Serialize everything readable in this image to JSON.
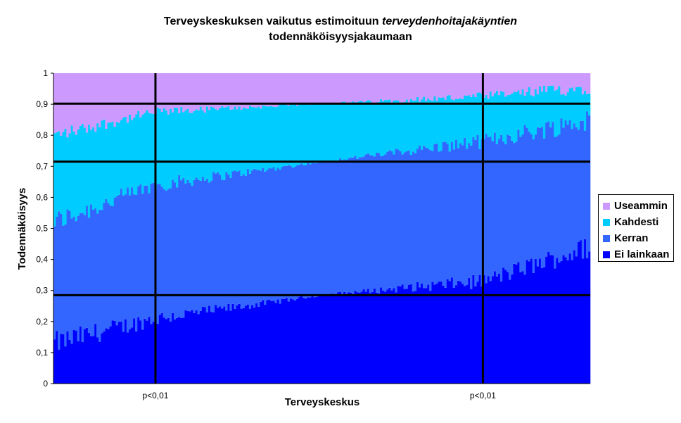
{
  "title": {
    "before": "Terveyskeskuksen vaikutus estimoituun ",
    "italic": "terveydenhoitajakäyntien",
    "line2": "todennäköisyysjakaumaan"
  },
  "chart_data": {
    "type": "bar",
    "stacked": true,
    "xlabel": "Terveyskeskus",
    "ylabel": "Todennäköisyys",
    "ylim": [
      0,
      1
    ],
    "y_ticks": [
      "0",
      "0,1",
      "0,2",
      "0,3",
      "0,4",
      "0,5",
      "0,6",
      "0,7",
      "0,8",
      "0,9",
      "1"
    ],
    "x_annotations": [
      {
        "label": "p<0,01",
        "position": 0.19
      },
      {
        "label": "p<0,01",
        "position": 0.8
      }
    ],
    "reference_lines": [
      0.285,
      0.715,
      0.902
    ],
    "n_centres": 250,
    "series": [
      {
        "name": "Ei lainkaan",
        "color": "#0000FF",
        "boundary_profile": [
          [
            0,
            0.13
          ],
          [
            0.19,
            0.21
          ],
          [
            0.5,
            0.285
          ],
          [
            0.8,
            0.33
          ],
          [
            1,
            0.44
          ]
        ]
      },
      {
        "name": "Kerran",
        "color": "#3366FF",
        "boundary_profile": [
          [
            0,
            0.52
          ],
          [
            0.19,
            0.64
          ],
          [
            0.5,
            0.715
          ],
          [
            0.8,
            0.78
          ],
          [
            1,
            0.85
          ]
        ]
      },
      {
        "name": "Kahdesti",
        "color": "#00CCFF",
        "boundary_profile": [
          [
            0,
            0.8
          ],
          [
            0.19,
            0.875
          ],
          [
            0.5,
            0.902
          ],
          [
            0.8,
            0.925
          ],
          [
            1,
            0.955
          ]
        ]
      },
      {
        "name": "Useammin",
        "color": "#CC99FF",
        "boundary_profile": [
          [
            0,
            1
          ],
          [
            1,
            1
          ]
        ]
      }
    ],
    "legend_position": "right",
    "grid": false
  }
}
